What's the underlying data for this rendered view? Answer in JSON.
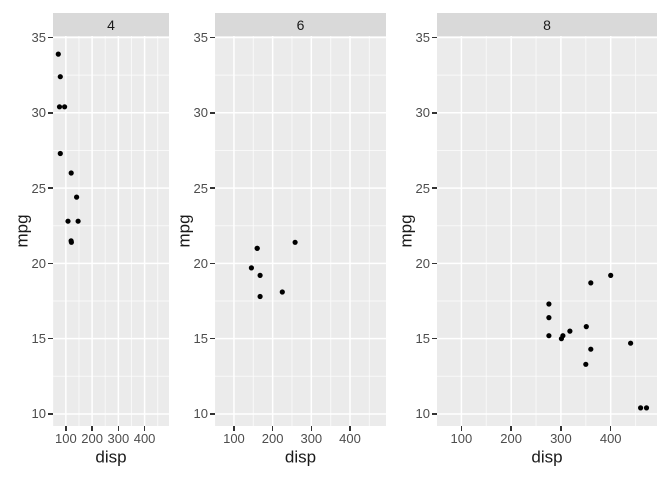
{
  "figure": {
    "background": "#FFFFFF"
  },
  "chart_data": {
    "type": "scatter",
    "title": "",
    "xlabel": "disp",
    "ylabel": "mpg",
    "legend": "none",
    "grid": true,
    "xlim": [
      51,
      493
    ],
    "ylim": [
      9.2,
      35.1
    ],
    "x_ticks": [
      100,
      200,
      300,
      400
    ],
    "x_minor_ticks": [
      50,
      150,
      250,
      350,
      450
    ],
    "y_ticks": [
      35,
      30,
      25,
      20,
      15,
      10
    ],
    "y_minor_ticks": [
      32.5,
      27.5,
      22.5,
      17.5,
      12.5
    ],
    "facets": [
      {
        "label": "4",
        "points": [
          [
            71.1,
            33.9
          ],
          [
            78.7,
            32.4
          ],
          [
            75.7,
            30.4
          ],
          [
            95.1,
            30.4
          ],
          [
            79.0,
            27.3
          ],
          [
            120.3,
            26.0
          ],
          [
            140.8,
            24.4
          ],
          [
            108.0,
            22.8
          ],
          [
            146.7,
            22.8
          ],
          [
            120.1,
            21.5
          ],
          [
            121.0,
            21.4
          ]
        ]
      },
      {
        "label": "6",
        "points": [
          [
            160.0,
            21.0
          ],
          [
            160.0,
            21.0
          ],
          [
            258.0,
            21.4
          ],
          [
            145.0,
            19.7
          ],
          [
            167.6,
            19.2
          ],
          [
            225.0,
            18.1
          ],
          [
            167.6,
            17.8
          ]
        ]
      },
      {
        "label": "8",
        "points": [
          [
            400.0,
            19.2
          ],
          [
            360.0,
            18.7
          ],
          [
            275.8,
            17.3
          ],
          [
            275.8,
            16.4
          ],
          [
            351.0,
            15.8
          ],
          [
            318.0,
            15.5
          ],
          [
            275.8,
            15.2
          ],
          [
            304.0,
            15.2
          ],
          [
            301.0,
            15.0
          ],
          [
            440.0,
            14.7
          ],
          [
            360.0,
            14.3
          ],
          [
            350.0,
            13.3
          ],
          [
            460.0,
            10.4
          ],
          [
            472.0,
            10.4
          ]
        ]
      }
    ],
    "point_style": {
      "color": "#000000",
      "radius_px": 2.6
    },
    "theme": {
      "panel_bg": "#EBEBEB",
      "strip_bg": "#D9D9D9",
      "strip_text": "#1A1A1A",
      "grid_major": "#FFFFFF",
      "grid_minor": "#FFFFFF",
      "axis_text": "#4D4D4D",
      "axis_title": "#1A1A1A",
      "tick_mark": "#333333"
    }
  }
}
